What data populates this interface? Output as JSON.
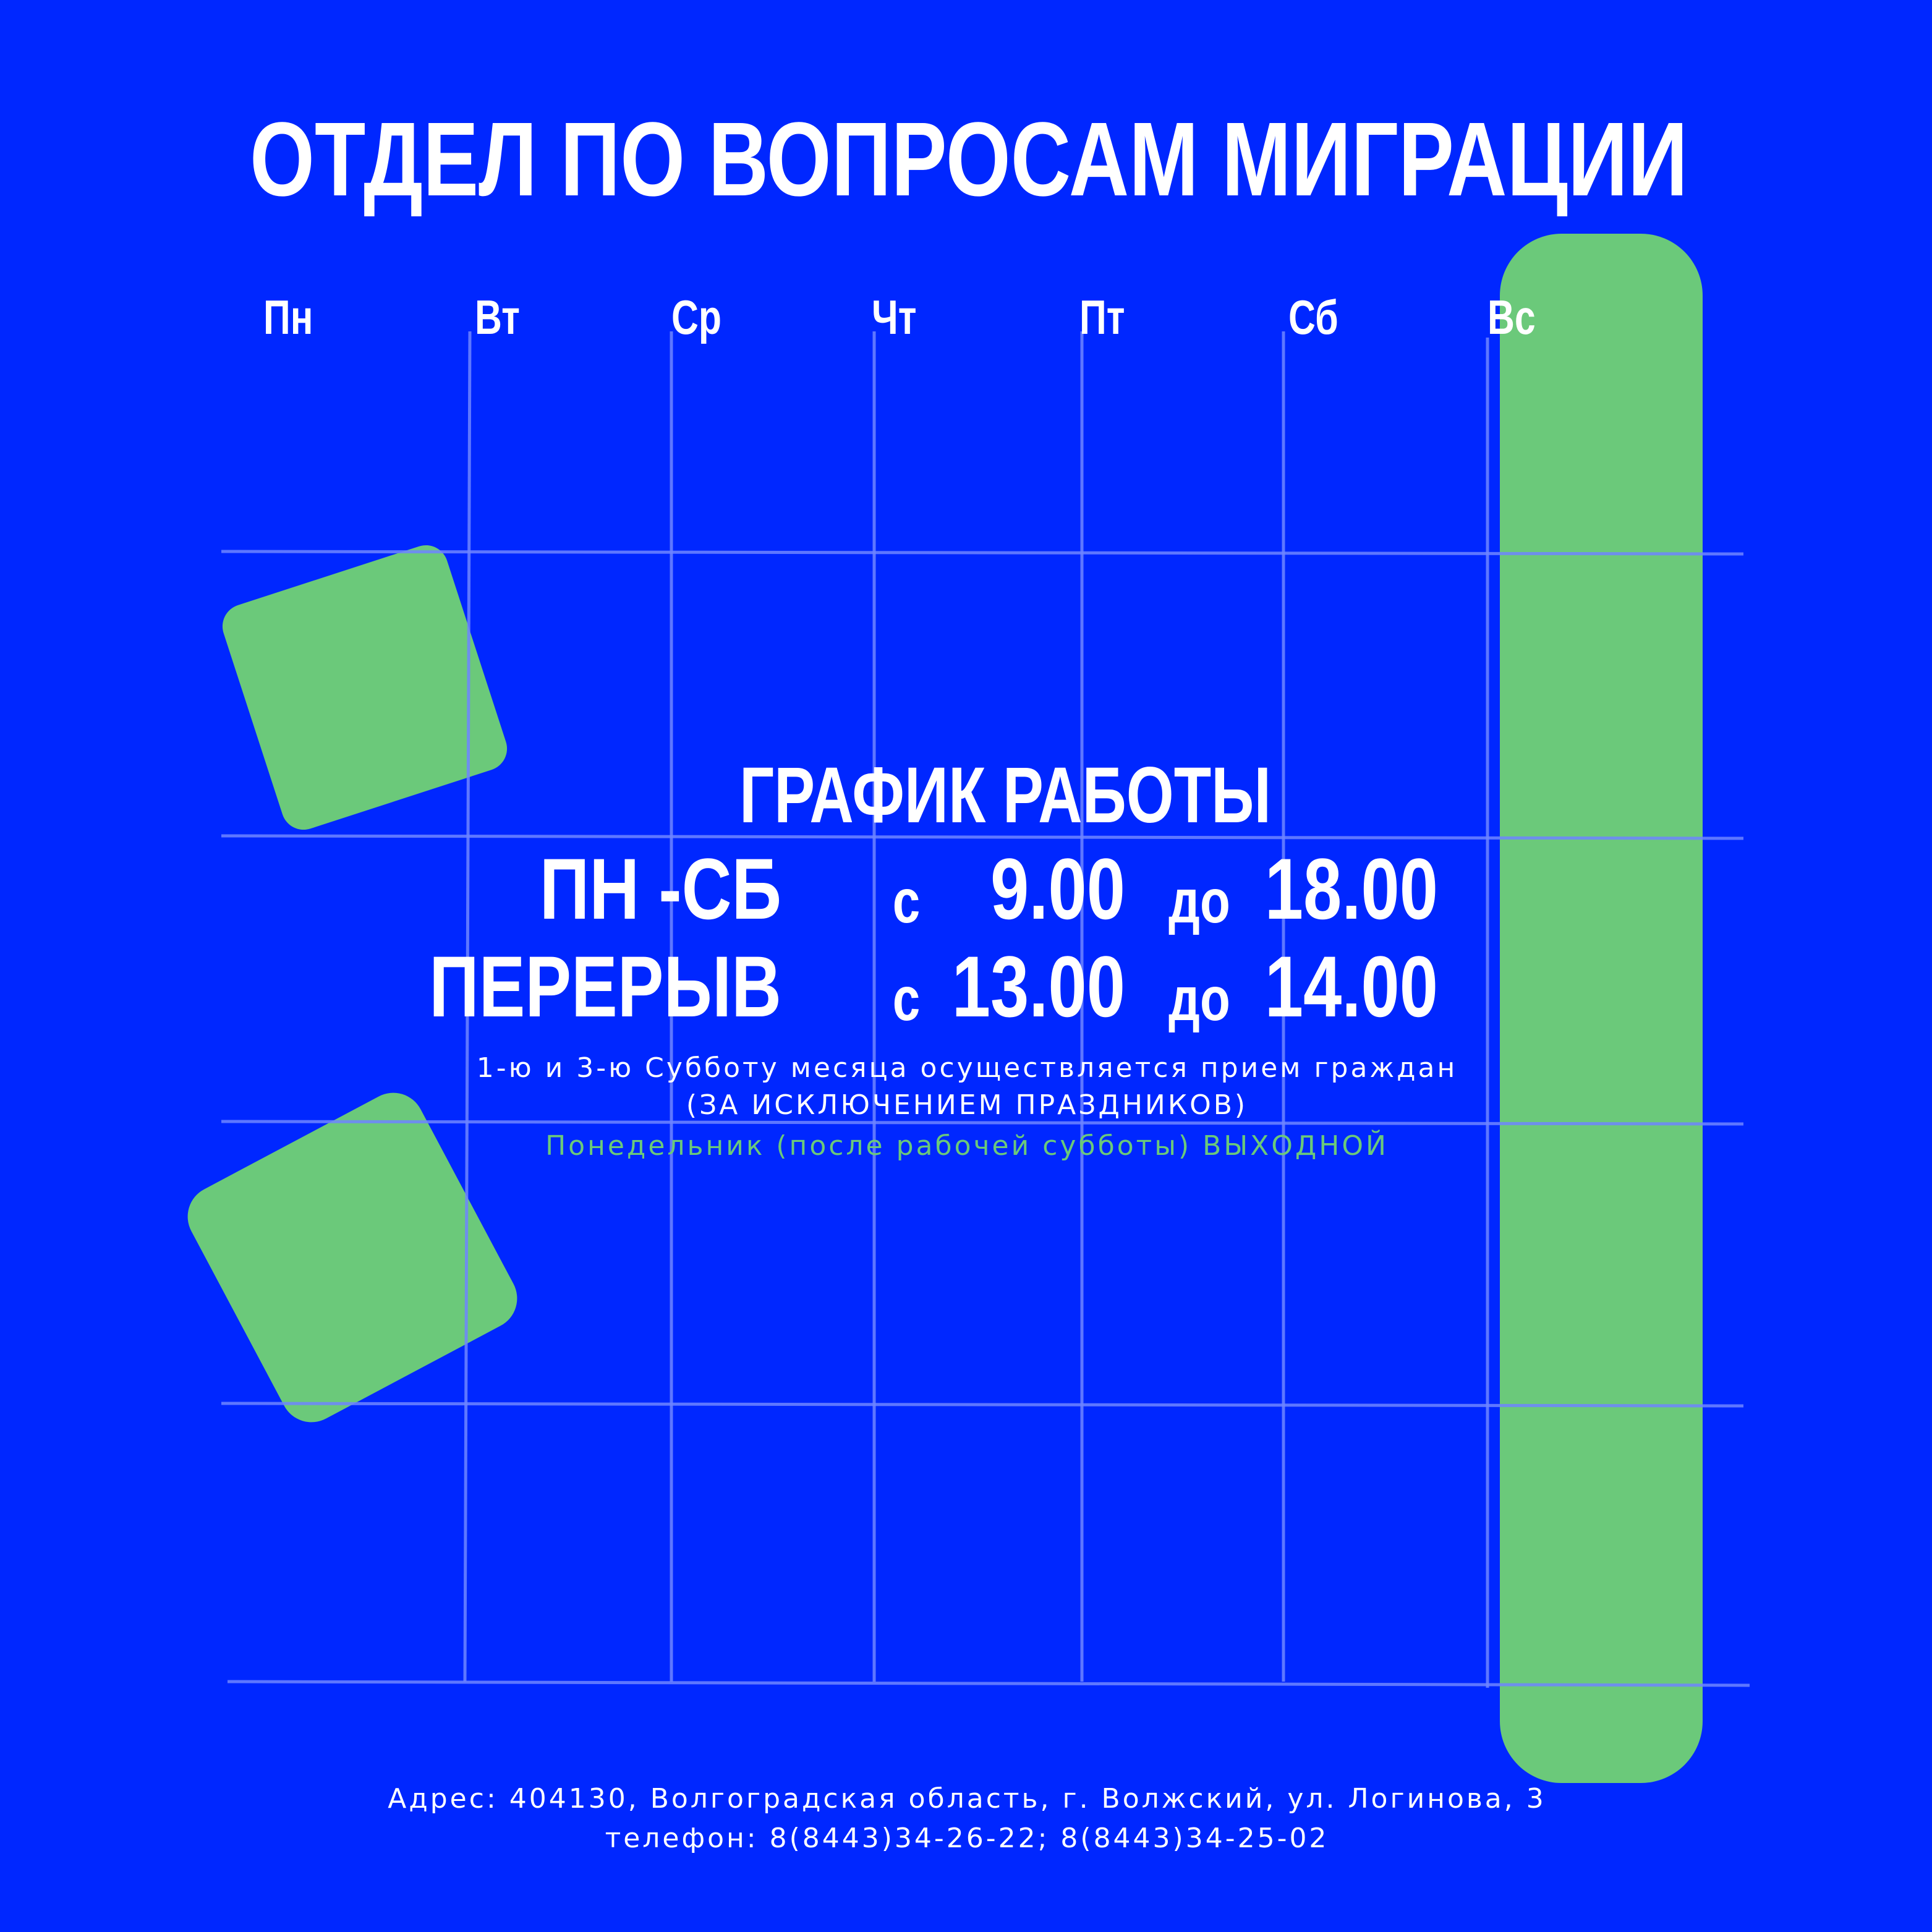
{
  "header": {
    "title": "ОТДЕЛ ПО ВОПРОСАМ МИГРАЦИИ"
  },
  "days": [
    "Пн",
    "Вт",
    "Ср",
    "Чт",
    "Пт",
    "Сб",
    "Вс"
  ],
  "schedule": {
    "heading": "ГРАФИК РАБОТЫ",
    "rows": [
      [
        "ПН -СБ",
        "с",
        "9.00",
        "до",
        "18.00"
      ],
      [
        "ПЕРЕРЫВ",
        "с",
        "13.00",
        "до",
        "14.00"
      ]
    ],
    "notes": [
      "1-ю  и  3-ю Субботу месяца осуществляется прием граждан",
      "(ЗА ИСКЛЮЧЕНИЕМ ПРАЗДНИКОВ)",
      "Понедельник (после рабочей субботы) ВЫХОДНОЙ"
    ]
  },
  "footer": {
    "address": "Адрес: 404130, Волгоградская область, г. Волжский, ул. Логинова, 3",
    "phone": "телефон: 8(8443)34-26-22; 8(8443)34-25-02"
  }
}
